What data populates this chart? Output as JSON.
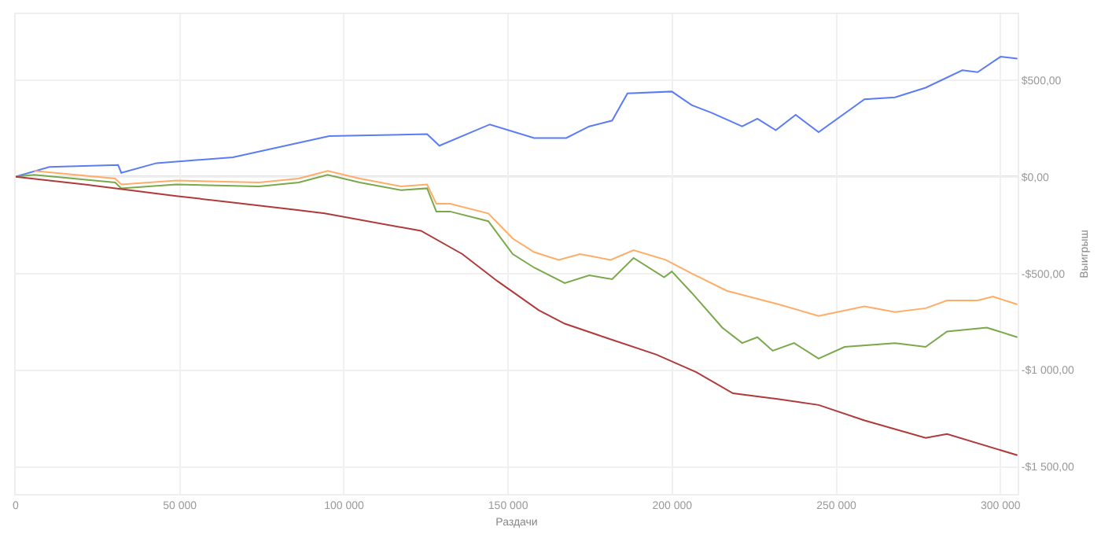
{
  "chart_data": {
    "type": "line",
    "xlabel": "Раздачи",
    "ylabel": "Выигрыш",
    "xlim": [
      0,
      305200
    ],
    "ylim": [
      -1640,
      840
    ],
    "xticks": [
      {
        "value": 0,
        "label": "0"
      },
      {
        "value": 50000,
        "label": "50 000"
      },
      {
        "value": 100000,
        "label": "100 000"
      },
      {
        "value": 150000,
        "label": "150 000"
      },
      {
        "value": 200000,
        "label": "200 000"
      },
      {
        "value": 250000,
        "label": "250 000"
      },
      {
        "value": 300000,
        "label": "300 000"
      }
    ],
    "yticks": [
      {
        "value": 500,
        "label": "$500,00"
      },
      {
        "value": 0,
        "label": "$0,00"
      },
      {
        "value": -500,
        "label": "-$500,00"
      },
      {
        "value": -1000,
        "label": "-$1 000,00"
      },
      {
        "value": -1500,
        "label": "-$1 500,00"
      }
    ],
    "grid": true,
    "marker": "none",
    "line_style": "solid",
    "ref_lines": [
      {
        "axis": "y",
        "value": 0,
        "color": "#c8c8c8"
      }
    ],
    "series": [
      {
        "color": "#5b7cf5",
        "x": [
          0,
          10250,
          31200,
          32140,
          42860,
          66150,
          95500,
          125310,
          129050,
          144410,
          157920,
          167700,
          174690,
          181680,
          186340,
          199850,
          205900,
          211960,
          221270,
          225930,
          231520,
          237580,
          244570,
          258540,
          267860,
          277170,
          288350,
          293010,
          300000,
          305120
        ],
        "values": [
          0,
          50,
          60,
          20,
          70,
          100,
          210,
          220,
          160,
          270,
          200,
          200,
          260,
          290,
          430,
          440,
          370,
          330,
          260,
          300,
          240,
          320,
          230,
          400,
          410,
          460,
          550,
          540,
          620,
          610
        ]
      },
      {
        "color": "#ffac66",
        "x": [
          5590,
          30280,
          32140,
          48910,
          74070,
          86180,
          95030,
          104810,
          117390,
          125310,
          128110,
          132300,
          143950,
          151400,
          157920,
          165370,
          171890,
          181210,
          188200,
          197980,
          205900,
          216610,
          232450,
          244570,
          258540,
          267860,
          277170,
          283690,
          293010,
          297670,
          305120
        ],
        "values": [
          30,
          -10,
          -40,
          -20,
          -30,
          -10,
          30,
          -10,
          -50,
          -40,
          -140,
          -140,
          -190,
          -320,
          -390,
          -430,
          -400,
          -430,
          -380,
          -430,
          -500,
          -590,
          -660,
          -720,
          -670,
          -700,
          -680,
          -640,
          -640,
          -620,
          -660
        ]
      },
      {
        "color": "#7aa84a",
        "x": [
          0,
          5590,
          30280,
          32140,
          48910,
          74070,
          86180,
          95030,
          104810,
          117390,
          125310,
          128110,
          132300,
          143950,
          151400,
          157920,
          167240,
          174690,
          181680,
          188200,
          197520,
          199850,
          205900,
          215220,
          221270,
          225930,
          230590,
          237110,
          244570,
          252490,
          267860,
          277170,
          283690,
          295810,
          305120
        ],
        "values": [
          0,
          10,
          -30,
          -60,
          -40,
          -50,
          -30,
          10,
          -30,
          -70,
          -60,
          -180,
          -180,
          -230,
          -400,
          -470,
          -550,
          -510,
          -530,
          -420,
          -520,
          -490,
          -600,
          -780,
          -860,
          -830,
          -900,
          -860,
          -940,
          -880,
          -860,
          -880,
          -800,
          -780,
          -830
        ]
      },
      {
        "color": "#b03a3a",
        "x": [
          0,
          20960,
          48910,
          84780,
          94100,
          123450,
          136030,
          146740,
          159320,
          167240,
          179350,
          195190,
          207300,
          218480,
          232450,
          244570,
          258540,
          277170,
          283690,
          305120
        ],
        "values": [
          0,
          -40,
          -100,
          -170,
          -190,
          -280,
          -400,
          -540,
          -690,
          -760,
          -830,
          -920,
          -1010,
          -1120,
          -1150,
          -1180,
          -1260,
          -1350,
          -1330,
          -1440
        ]
      }
    ]
  }
}
